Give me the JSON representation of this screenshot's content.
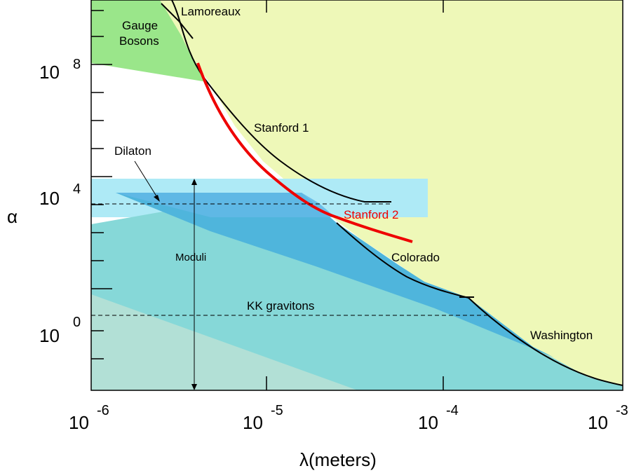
{
  "chart_data": {
    "type": "area",
    "xlabel": "λ(meters)",
    "ylabel": "α",
    "x_scale": "log",
    "y_scale": "log",
    "xlim": [
      1e-06,
      0.001
    ],
    "ylim": [
      0.01,
      10000000000.0
    ],
    "x_ticks": [
      {
        "base": "10",
        "exp": "-6",
        "value": 1e-06
      },
      {
        "base": "10",
        "exp": "-5",
        "value": 1e-05
      },
      {
        "base": "10",
        "exp": "-4",
        "value": 0.0001
      },
      {
        "base": "10",
        "exp": "-3",
        "value": 0.001
      }
    ],
    "y_ticks": [
      {
        "base": "10",
        "exp": "0",
        "value": 1
      },
      {
        "base": "10",
        "exp": "4",
        "value": 10000.0
      },
      {
        "base": "10",
        "exp": "8",
        "value": 100000000.0
      }
    ],
    "colors": {
      "excluded": "#eef8b8",
      "gauge": "#9ae68a",
      "moduli_band": "#aeeaf6",
      "moduli_dark": "#62b8e6",
      "mid_blue": "#4fb5dc",
      "teal": "#86d8d8",
      "light_teal": "#b2e0d6",
      "stanford2": "#ee0000"
    },
    "curves": [
      {
        "name": "Lamoreaux",
        "x": [
          2.2e-06,
          3.5e-06
        ],
        "y": [
          10000000000.0,
          250000000.0
        ]
      },
      {
        "name": "Stanford 1",
        "x": [
          2.4e-06,
          2.8e-06,
          3.4e-06,
          4.4e-06,
          1e-05,
          2e-05,
          3.5e-05,
          5.2e-05
        ],
        "y": [
          10000000000.0,
          6000000000.0,
          1000000000.0,
          12000000.0,
          500000.0,
          80000.0,
          22000.0,
          22000.0
        ]
      },
      {
        "name": "Colorado",
        "x": [
          2.6e-05,
          3.5e-05,
          5e-05,
          7e-05,
          0.0001,
          0.00014
        ],
        "y": [
          1600.0,
          320,
          60,
          16,
          6.5,
          5.5
        ]
      },
      {
        "name": "Washington",
        "x": [
          0.00014,
          0.0002,
          0.0003,
          0.0005,
          0.001
        ],
        "y": [
          5.5,
          0.6,
          0.085,
          0.03,
          0.02
        ]
      },
      {
        "name": "Stanford 2",
        "x": [
          3.5e-06,
          5e-06,
          8e-06,
          1.5e-05,
          3e-05,
          6.5e-05
        ],
        "y": [
          110000000.0,
          1000000.0,
          40000.0,
          6000.0,
          900,
          500
        ]
      }
    ],
    "regions": [
      {
        "label": "Gauge Bosons"
      },
      {
        "label": "Dilaton",
        "y": 12000
      },
      {
        "label": "Moduli",
        "x": 4e-06,
        "y_range": [
          0.02,
          20000.0
        ]
      },
      {
        "label": "KK gravitons",
        "y": 1.3
      }
    ]
  }
}
